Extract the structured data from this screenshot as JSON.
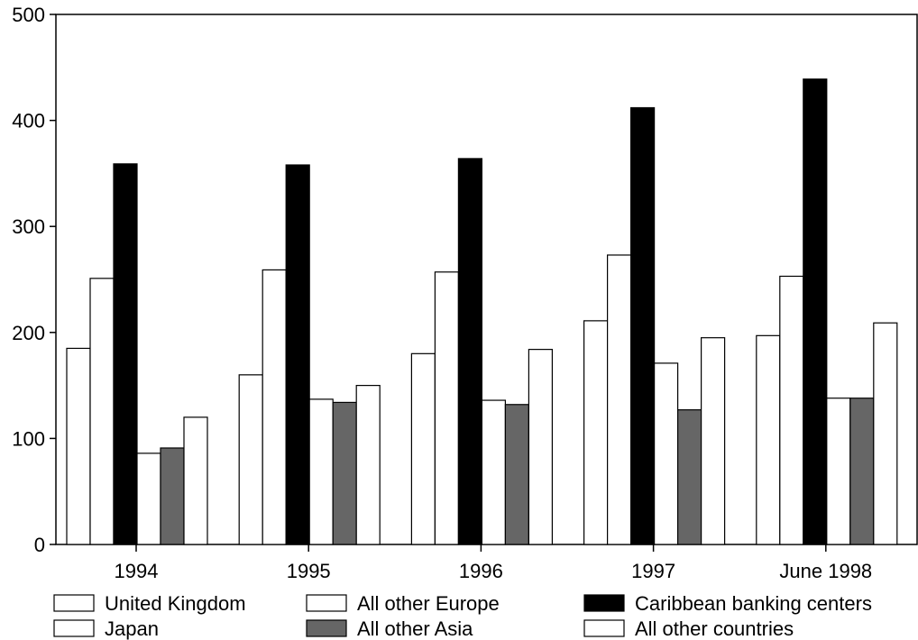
{
  "chart_data": {
    "type": "bar",
    "title": "",
    "xlabel": "",
    "ylabel": "",
    "ylim": [
      0,
      500
    ],
    "yticks": [
      "0",
      "100",
      "200",
      "300",
      "400",
      "500"
    ],
    "categories": [
      "1994",
      "1995",
      "1996",
      "1997",
      "June 1998"
    ],
    "legend_position": "bottom",
    "grid": false,
    "series": [
      {
        "name": "United Kingdom",
        "color": "#ffffff",
        "values": [
          185,
          160,
          180,
          211,
          197
        ]
      },
      {
        "name": "All other Europe",
        "color": "#ffffff",
        "values": [
          251,
          259,
          257,
          273,
          253
        ]
      },
      {
        "name": "Caribbean banking centers",
        "color": "#000000",
        "values": [
          359,
          358,
          364,
          412,
          439
        ]
      },
      {
        "name": "Japan",
        "color": "#ffffff",
        "values": [
          86,
          137,
          136,
          171,
          138
        ]
      },
      {
        "name": "All other Asia",
        "color": "#666666",
        "values": [
          91,
          134,
          132,
          127,
          138
        ]
      },
      {
        "name": "All other countries",
        "color": "#ffffff",
        "values": [
          120,
          150,
          184,
          195,
          209
        ]
      }
    ],
    "legend_layout": [
      [
        "United Kingdom",
        "All other Europe",
        "Caribbean banking centers"
      ],
      [
        "Japan",
        "All other Asia",
        "All other countries"
      ]
    ]
  }
}
